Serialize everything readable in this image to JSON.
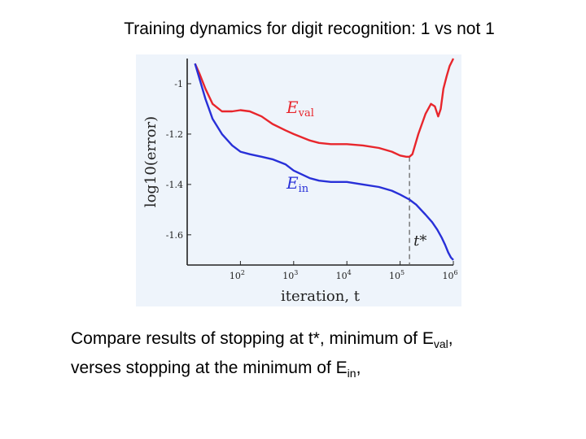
{
  "title": "Training dynamics for digit recognition: 1 vs not 1",
  "caption": {
    "line1_pre": "Compare results of stopping at t*, minimum of E",
    "line1_sub": "val",
    "line1_post": ",",
    "line2_pre": "verses stopping at the minimum of E",
    "line2_sub": "in",
    "line2_post": ","
  },
  "chart_data": {
    "type": "line",
    "xlabel": "iteration, t",
    "ylabel": "log10(error)",
    "xscale": "log",
    "xlim": [
      10,
      1000000
    ],
    "ylim": [
      -1.72,
      -0.9
    ],
    "xticks": [
      {
        "value": 100,
        "label": "10",
        "exp": "2"
      },
      {
        "value": 1000,
        "label": "10",
        "exp": "3"
      },
      {
        "value": 10000,
        "label": "10",
        "exp": "4"
      },
      {
        "value": 100000,
        "label": "10",
        "exp": "5"
      },
      {
        "value": 1000000,
        "label": "10",
        "exp": "6"
      }
    ],
    "yticks": [
      -1,
      -1.2,
      -1.4,
      -1.6
    ],
    "ytick_labels": [
      "-1",
      "-1.2",
      "-1.4",
      "-1.6"
    ],
    "grid": false,
    "series": [
      {
        "name": "E_val",
        "label_main": "E",
        "label_sub": "val",
        "color": "#e8262c",
        "x": [
          14,
          17,
          22,
          30,
          45,
          70,
          100,
          150,
          250,
          400,
          700,
          1000,
          2000,
          3000,
          5000,
          7000,
          10000,
          20000,
          40000,
          70000,
          100000,
          130000,
          150000,
          170000,
          220000,
          300000,
          380000,
          450000,
          520000,
          580000,
          650000,
          750000,
          850000,
          950000,
          1000000
        ],
        "y": [
          -0.92,
          -0.96,
          -1.02,
          -1.08,
          -1.11,
          -1.11,
          -1.105,
          -1.11,
          -1.13,
          -1.16,
          -1.185,
          -1.2,
          -1.225,
          -1.235,
          -1.24,
          -1.24,
          -1.24,
          -1.245,
          -1.255,
          -1.27,
          -1.285,
          -1.29,
          -1.29,
          -1.28,
          -1.2,
          -1.12,
          -1.08,
          -1.09,
          -1.13,
          -1.1,
          -1.02,
          -0.97,
          -0.93,
          -0.91,
          -0.9
        ]
      },
      {
        "name": "E_in",
        "label_main": "E",
        "label_sub": "in",
        "color": "#2830d8",
        "x": [
          14,
          17,
          22,
          30,
          45,
          70,
          100,
          150,
          250,
          400,
          700,
          1000,
          2000,
          3000,
          5000,
          7000,
          10000,
          20000,
          40000,
          70000,
          100000,
          150000,
          200000,
          300000,
          400000,
          500000,
          600000,
          700000,
          800000,
          900000,
          1000000
        ],
        "y": [
          -0.92,
          -0.98,
          -1.06,
          -1.14,
          -1.2,
          -1.245,
          -1.27,
          -1.28,
          -1.29,
          -1.3,
          -1.32,
          -1.345,
          -1.375,
          -1.385,
          -1.39,
          -1.39,
          -1.39,
          -1.4,
          -1.41,
          -1.425,
          -1.44,
          -1.46,
          -1.48,
          -1.52,
          -1.55,
          -1.58,
          -1.61,
          -1.64,
          -1.67,
          -1.69,
          -1.7
        ]
      }
    ],
    "marker": {
      "label": "t*",
      "x": 150000
    }
  }
}
